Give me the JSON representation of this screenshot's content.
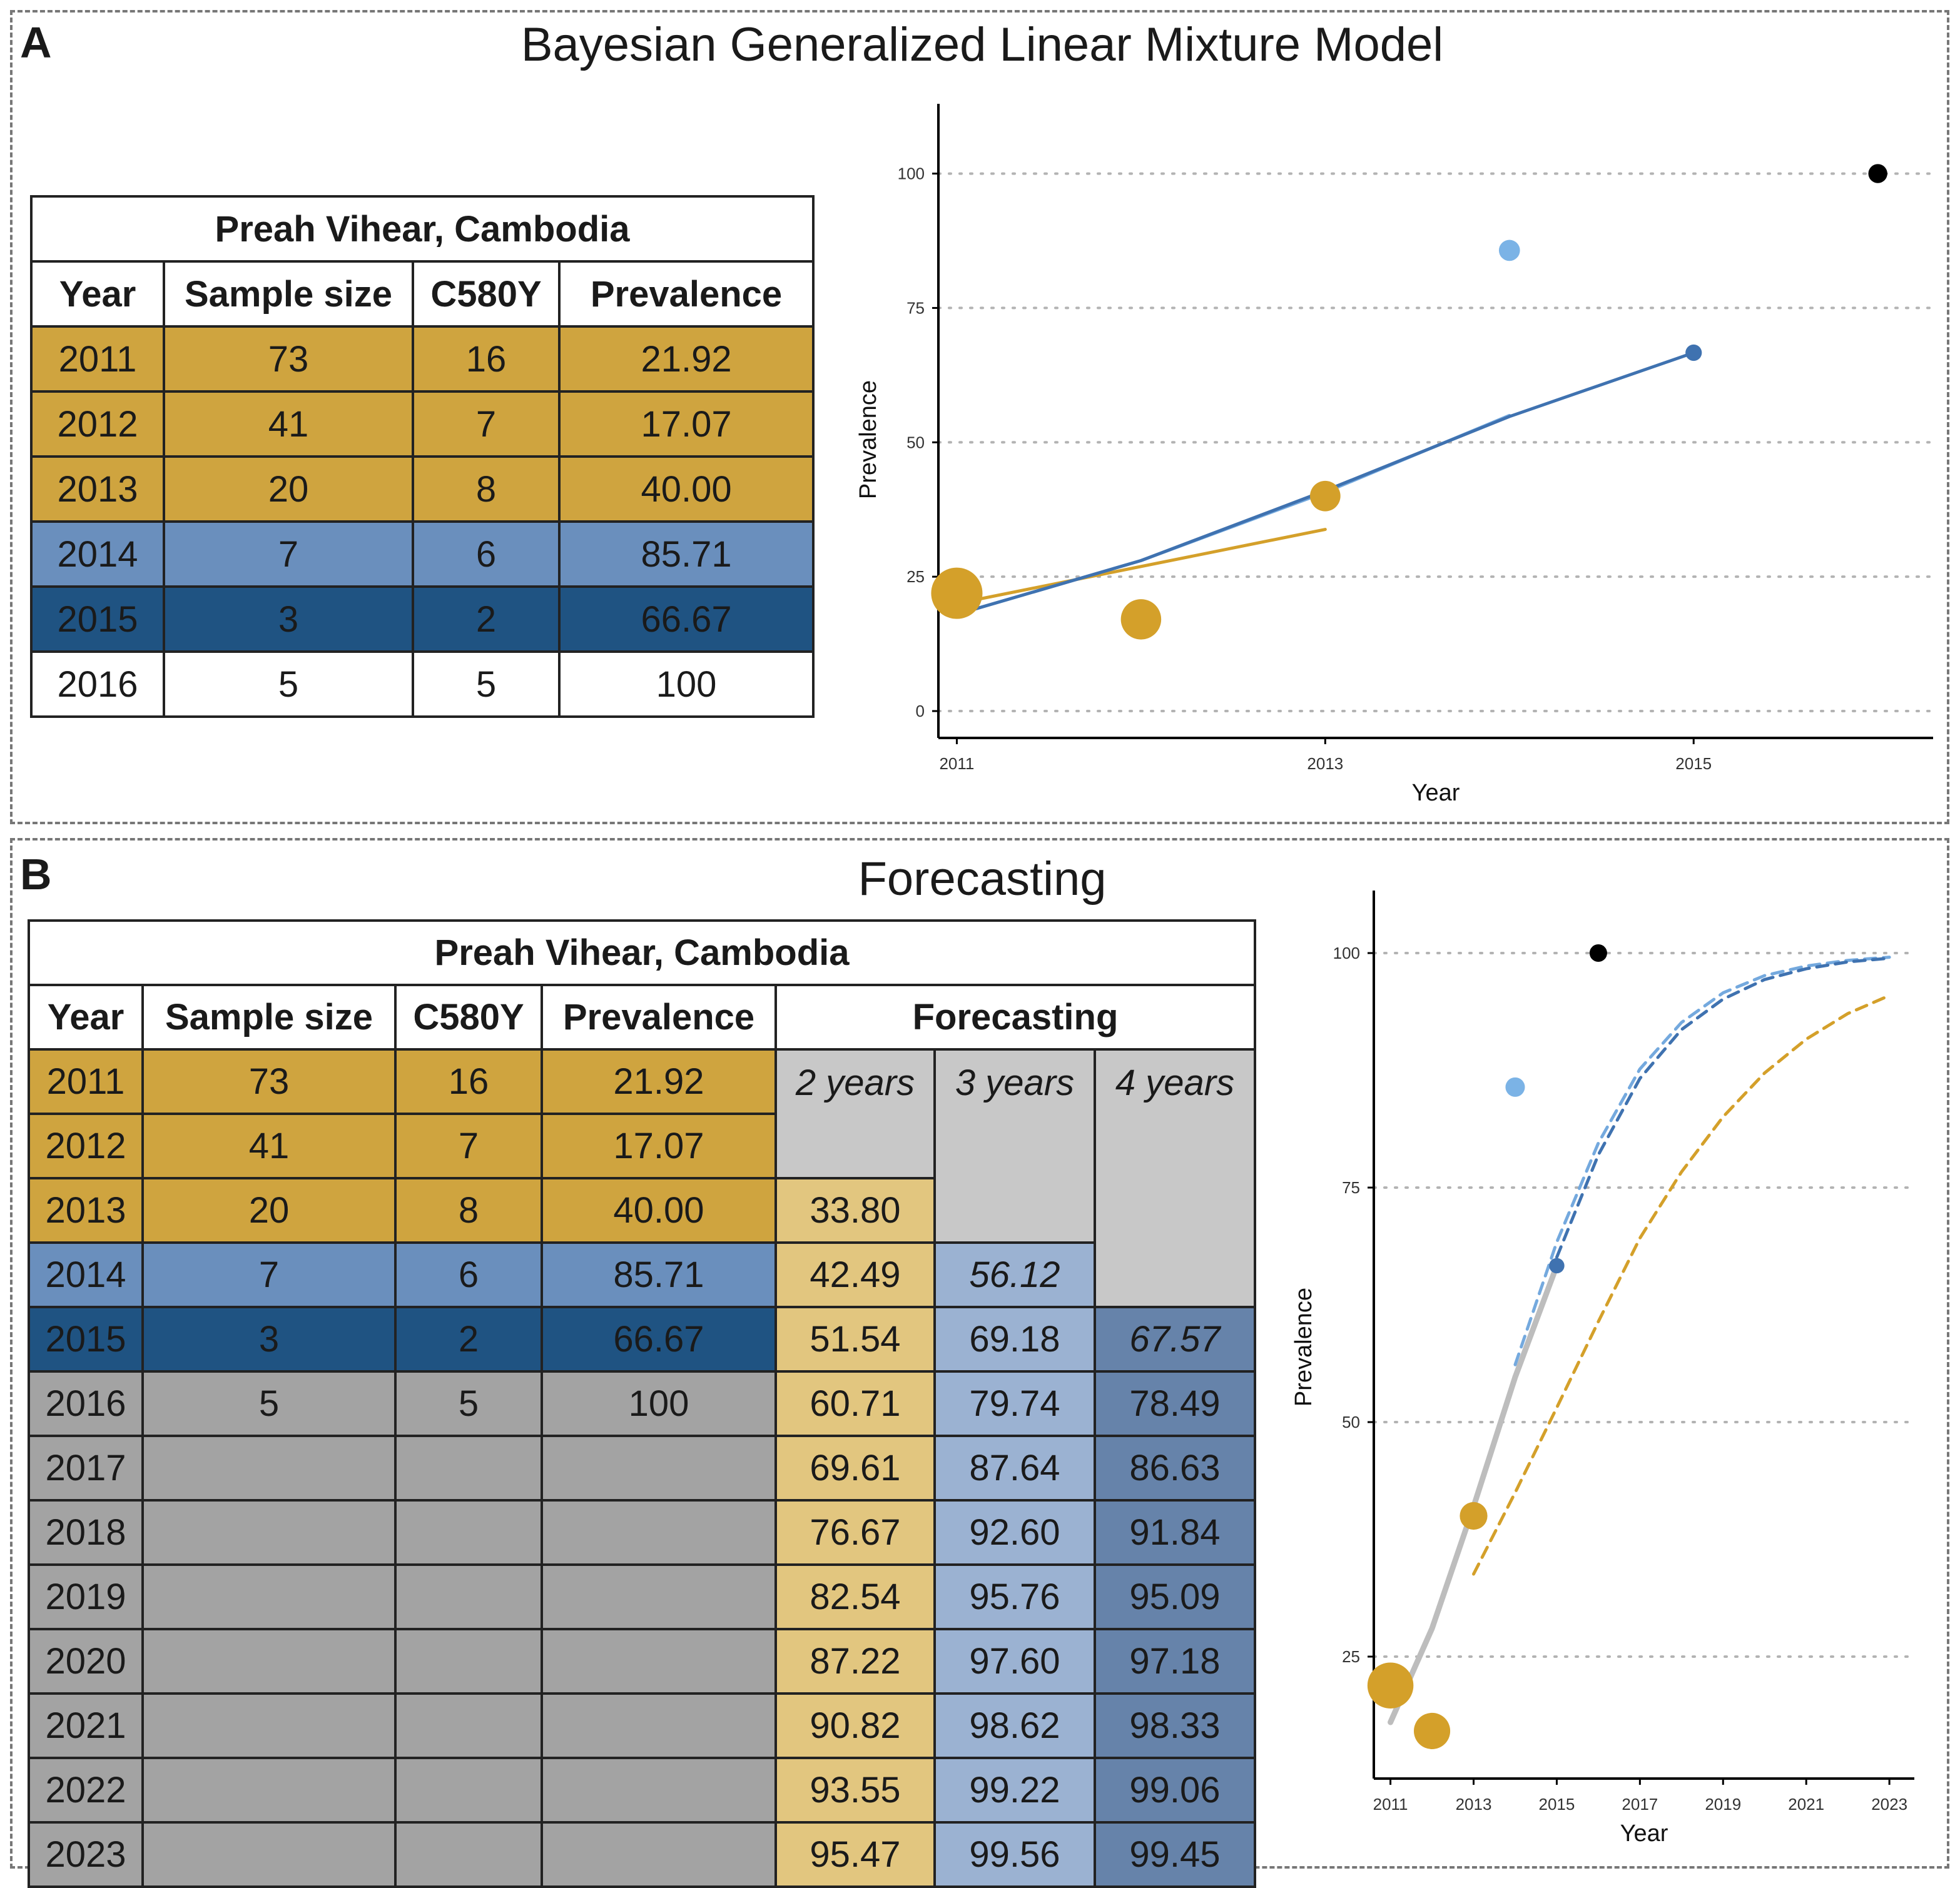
{
  "panel_a": {
    "label": "A",
    "title": "Bayesian Generalized Linear Mixture Model",
    "table": {
      "caption": "Preah Vihear, Cambodia",
      "headers": [
        "Year",
        "Sample size",
        "C580Y",
        "Prevalence"
      ],
      "rows": [
        [
          "2011",
          "73",
          "16",
          "21.92"
        ],
        [
          "2012",
          "41",
          "7",
          "17.07"
        ],
        [
          "2013",
          "20",
          "8",
          "40.00"
        ],
        [
          "2014",
          "7",
          "6",
          "85.71"
        ],
        [
          "2015",
          "3",
          "2",
          "66.67"
        ],
        [
          "2016",
          "5",
          "5",
          "100"
        ]
      ]
    }
  },
  "panel_b": {
    "label": "B",
    "title": "Forecasting",
    "table": {
      "caption": "Preah Vihear, Cambodia",
      "headers": [
        "Year",
        "Sample size",
        "C580Y",
        "Prevalence",
        "Forecasting"
      ],
      "sub_headers": [
        "2 years",
        "3 years",
        "4 years"
      ],
      "rows": [
        [
          "2011",
          "73",
          "16",
          "21.92",
          "",
          "",
          ""
        ],
        [
          "2012",
          "41",
          "7",
          "17.07",
          "",
          "",
          ""
        ],
        [
          "2013",
          "20",
          "8",
          "40.00",
          "33.80",
          "",
          ""
        ],
        [
          "2014",
          "7",
          "6",
          "85.71",
          "42.49",
          "56.12",
          ""
        ],
        [
          "2015",
          "3",
          "2",
          "66.67",
          "51.54",
          "69.18",
          "67.57"
        ],
        [
          "2016",
          "5",
          "5",
          "100",
          "60.71",
          "79.74",
          "78.49"
        ],
        [
          "2017",
          "",
          "",
          "",
          "69.61",
          "87.64",
          "86.63"
        ],
        [
          "2018",
          "",
          "",
          "",
          "76.67",
          "92.60",
          "91.84"
        ],
        [
          "2019",
          "",
          "",
          "",
          "82.54",
          "95.76",
          "95.09"
        ],
        [
          "2020",
          "",
          "",
          "",
          "87.22",
          "97.60",
          "97.18"
        ],
        [
          "2021",
          "",
          "",
          "",
          "90.82",
          "98.62",
          "98.33"
        ],
        [
          "2022",
          "",
          "",
          "",
          "93.55",
          "99.22",
          "99.06"
        ],
        [
          "2023",
          "",
          "",
          "",
          "95.47",
          "99.56",
          "99.45"
        ]
      ]
    }
  },
  "colors": {
    "gold": "#cfa43f",
    "light_blue": "#6a8fbd",
    "dark_blue": "#1f5382",
    "grey": "#a3a3a3",
    "light_grey": "#c8c8c8",
    "light_gold": "#e2c67f",
    "pale_blue": "#9bb2d2",
    "mid_blue": "#6683aa",
    "point_gold": "#d4a02a",
    "point_lightblue": "#7bb3e6",
    "line_blue": "#3f72b0",
    "line_lightblue": "#74a9de",
    "line_grey": "#bdbdbd",
    "point_black": "#000000"
  },
  "chart_data": [
    {
      "type": "scatter",
      "title": "",
      "xlabel": "Year",
      "ylabel": "Prevalence",
      "xlim": [
        2010.9,
        2016.3
      ],
      "ylim": [
        -5,
        106
      ],
      "x_ticks": [
        2011,
        2013,
        2015
      ],
      "y_ticks": [
        0,
        25,
        50,
        75,
        100
      ],
      "grid": "horizontal dotted",
      "legend": "none",
      "points": [
        {
          "x": 2011,
          "y": 21.92,
          "size": 73,
          "color": "gold"
        },
        {
          "x": 2012,
          "y": 17.07,
          "size": 41,
          "color": "gold"
        },
        {
          "x": 2013,
          "y": 40.0,
          "size": 20,
          "color": "gold"
        },
        {
          "x": 2014,
          "y": 85.71,
          "size": 7,
          "color": "lightblue"
        },
        {
          "x": 2015,
          "y": 66.67,
          "size": 3,
          "color": "blue"
        },
        {
          "x": 2016,
          "y": 100,
          "size": 5,
          "color": "black"
        }
      ],
      "series": [
        {
          "color": "gold",
          "x": [
            2011,
            2013
          ],
          "y": [
            20.0,
            33.8
          ]
        },
        {
          "color": "lightblue",
          "x": [
            2011,
            2012,
            2013,
            2014
          ],
          "y": [
            18.0,
            28.0,
            40.7,
            55.0
          ]
        },
        {
          "color": "blue",
          "x": [
            2011,
            2012,
            2013,
            2014,
            2015
          ],
          "y": [
            18.0,
            28.0,
            41.0,
            54.8,
            66.67
          ]
        }
      ]
    },
    {
      "type": "scatter",
      "title": "",
      "xlabel": "Year",
      "ylabel": "Prevalence",
      "xlim": [
        2010.6,
        2023.6
      ],
      "ylim": [
        12,
        104
      ],
      "x_ticks": [
        2011,
        2013,
        2015,
        2017,
        2019,
        2021,
        2023
      ],
      "y_ticks": [
        25,
        50,
        75,
        100
      ],
      "grid": "horizontal dotted",
      "legend": "none",
      "points": [
        {
          "x": 2011,
          "y": 21.92,
          "size": 73,
          "color": "gold"
        },
        {
          "x": 2012,
          "y": 17.07,
          "size": 41,
          "color": "gold"
        },
        {
          "x": 2013,
          "y": 40.0,
          "size": 20,
          "color": "gold"
        },
        {
          "x": 2014,
          "y": 85.71,
          "size": 7,
          "color": "lightblue"
        },
        {
          "x": 2015,
          "y": 66.67,
          "size": 3,
          "color": "blue"
        },
        {
          "x": 2016,
          "y": 100,
          "size": 5,
          "color": "black"
        }
      ],
      "series": [
        {
          "color": "grey",
          "style": "solid",
          "x": [
            2011,
            2012,
            2013,
            2014,
            2015
          ],
          "y": [
            18.0,
            28.0,
            41.0,
            54.8,
            66.67
          ]
        },
        {
          "color": "gold",
          "style": "dashed",
          "x": [
            2013,
            2014,
            2015,
            2016,
            2017,
            2018,
            2019,
            2020,
            2021,
            2022,
            2023
          ],
          "y": [
            33.8,
            42.49,
            51.54,
            60.71,
            69.61,
            76.67,
            82.54,
            87.22,
            90.82,
            93.55,
            95.47
          ]
        },
        {
          "color": "lightblue",
          "style": "dashed",
          "x": [
            2014,
            2015,
            2016,
            2017,
            2018,
            2019,
            2020,
            2021,
            2022,
            2023
          ],
          "y": [
            56.12,
            69.18,
            79.74,
            87.64,
            92.6,
            95.76,
            97.6,
            98.62,
            99.22,
            99.56
          ]
        },
        {
          "color": "blue",
          "style": "dashed",
          "x": [
            2015,
            2016,
            2017,
            2018,
            2019,
            2020,
            2021,
            2022,
            2023
          ],
          "y": [
            67.57,
            78.49,
            86.63,
            91.84,
            95.09,
            97.18,
            98.33,
            99.06,
            99.45
          ]
        }
      ]
    }
  ]
}
